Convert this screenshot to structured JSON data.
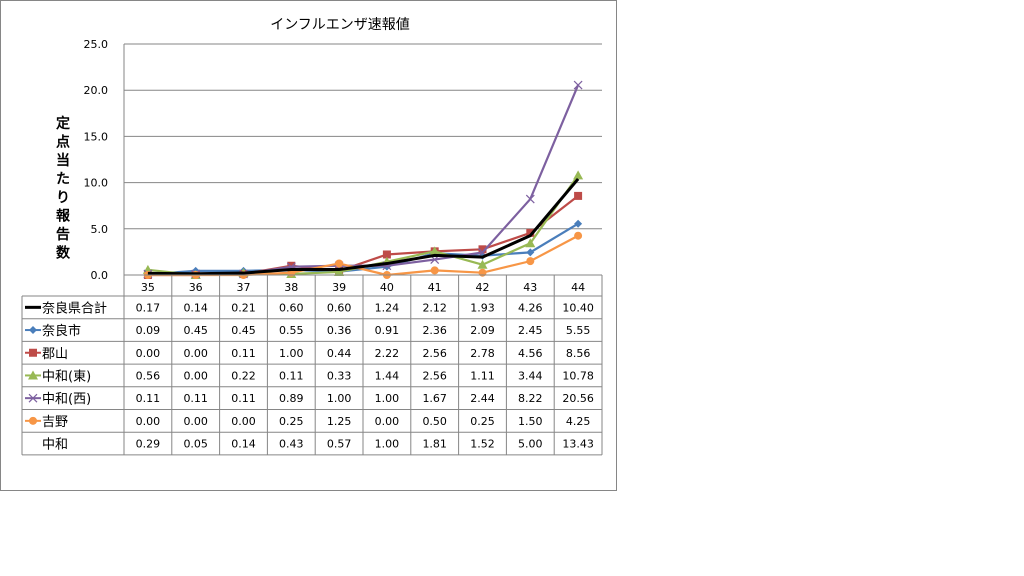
{
  "chart_data": {
    "type": "line",
    "title": "インフルエンザ速報値",
    "ylabel": "定点当たり報告数",
    "xlabel": "",
    "ylim": [
      0,
      25
    ],
    "yticks": [
      "0.0",
      "5.0",
      "10.0",
      "15.0",
      "20.0",
      "25.0"
    ],
    "categories": [
      "35",
      "36",
      "37",
      "38",
      "39",
      "40",
      "41",
      "42",
      "43",
      "44"
    ],
    "grid": true,
    "legend": "data-table",
    "series": [
      {
        "name": "奈良県合計",
        "color": "#000000",
        "marker": "none",
        "plotted": true,
        "values": [
          "0.17",
          "0.14",
          "0.21",
          "0.60",
          "0.60",
          "1.24",
          "2.12",
          "1.93",
          "4.26",
          "10.40"
        ]
      },
      {
        "name": "奈良市",
        "color": "#4a7ebb",
        "marker": "diamond",
        "plotted": true,
        "values": [
          "0.09",
          "0.45",
          "0.45",
          "0.55",
          "0.36",
          "0.91",
          "2.36",
          "2.09",
          "2.45",
          "5.55"
        ]
      },
      {
        "name": "郡山",
        "color": "#be4b48",
        "marker": "square",
        "plotted": true,
        "values": [
          "0.00",
          "0.00",
          "0.11",
          "1.00",
          "0.44",
          "2.22",
          "2.56",
          "2.78",
          "4.56",
          "8.56"
        ]
      },
      {
        "name": "中和(東)",
        "color": "#98b954",
        "marker": "triangle",
        "plotted": true,
        "values": [
          "0.56",
          "0.00",
          "0.22",
          "0.11",
          "0.33",
          "1.44",
          "2.56",
          "1.11",
          "3.44",
          "10.78"
        ]
      },
      {
        "name": "中和(西)",
        "color": "#7d60a0",
        "marker": "x",
        "plotted": true,
        "values": [
          "0.11",
          "0.11",
          "0.11",
          "0.89",
          "1.00",
          "1.00",
          "1.67",
          "2.44",
          "8.22",
          "20.56"
        ]
      },
      {
        "name": "吉野",
        "color": "#f79646",
        "marker": "circle",
        "plotted": true,
        "values": [
          "0.00",
          "0.00",
          "0.00",
          "0.25",
          "1.25",
          "0.00",
          "0.50",
          "0.25",
          "1.50",
          "4.25"
        ]
      },
      {
        "name": "中和",
        "color": "none",
        "marker": "none",
        "plotted": false,
        "values": [
          "0.29",
          "0.05",
          "0.14",
          "0.43",
          "0.57",
          "1.00",
          "1.81",
          "1.52",
          "5.00",
          "13.43"
        ]
      }
    ]
  }
}
